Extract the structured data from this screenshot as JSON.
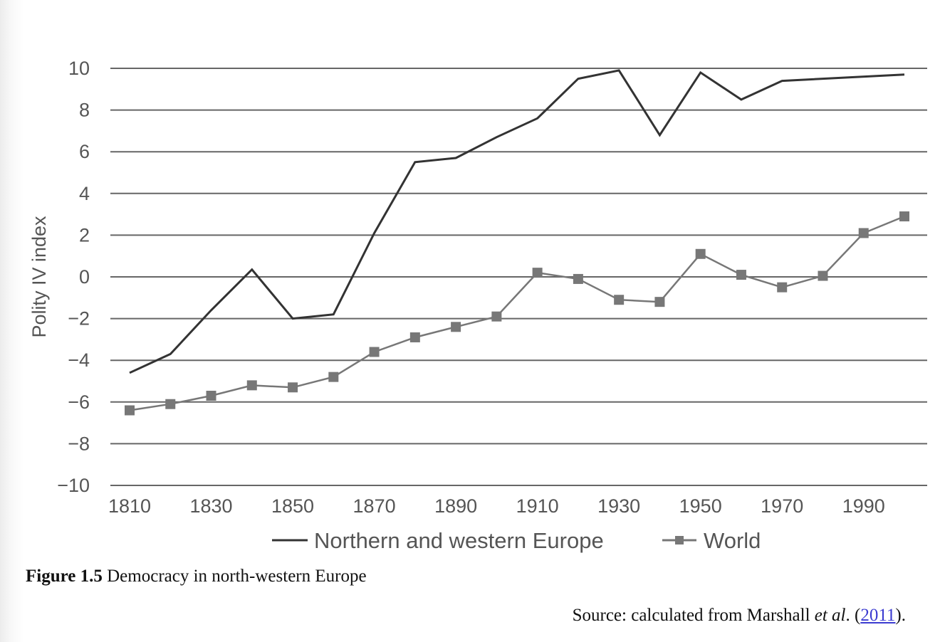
{
  "chart_data": {
    "type": "line",
    "ylabel": "Polity IV index",
    "xlabel": "",
    "ylim": [
      -10,
      10
    ],
    "yticks": [
      10,
      8,
      6,
      4,
      2,
      0,
      -2,
      -4,
      -6,
      -8,
      -10
    ],
    "ytick_labels": [
      "10",
      "8",
      "6",
      "4",
      "2",
      "0",
      "−2",
      "−4",
      "−6",
      "−8",
      "−10"
    ],
    "xlim": [
      1810,
      2000
    ],
    "xticks": [
      1810,
      1830,
      1850,
      1870,
      1890,
      1910,
      1930,
      1950,
      1970,
      1990
    ],
    "ytick_grid": true,
    "legend_position": "bottom-center",
    "series": [
      {
        "name": "Northern and western Europe",
        "color": "#333333",
        "marker": "none",
        "x": [
          1810,
          1820,
          1830,
          1840,
          1850,
          1860,
          1870,
          1880,
          1890,
          1900,
          1910,
          1920,
          1930,
          1940,
          1950,
          1960,
          1970,
          2000
        ],
        "y": [
          -4.6,
          -3.7,
          -1.6,
          0.35,
          -2.0,
          -1.8,
          2.1,
          5.5,
          5.7,
          6.7,
          7.6,
          9.5,
          9.9,
          6.8,
          9.8,
          8.5,
          9.4,
          9.7
        ]
      },
      {
        "name": "World",
        "color": "#777777",
        "marker": "square",
        "x": [
          1810,
          1820,
          1830,
          1840,
          1850,
          1860,
          1870,
          1880,
          1890,
          1900,
          1910,
          1920,
          1930,
          1940,
          1950,
          1960,
          1970,
          1980,
          1990,
          2000
        ],
        "y": [
          -6.4,
          -6.1,
          -5.7,
          -5.2,
          -5.3,
          -4.8,
          -3.6,
          -2.9,
          -2.4,
          -1.9,
          0.2,
          -0.1,
          -1.1,
          -1.2,
          1.1,
          0.1,
          -0.5,
          0.05,
          2.1,
          2.9
        ]
      }
    ]
  },
  "caption": {
    "label": "Figure 1.5",
    "text": "Democracy in north-western Europe"
  },
  "source": {
    "prefix": "Source: calculated from Marshall ",
    "etal": "et al",
    "mid": ". (",
    "year": "2011",
    "suffix": ")."
  }
}
